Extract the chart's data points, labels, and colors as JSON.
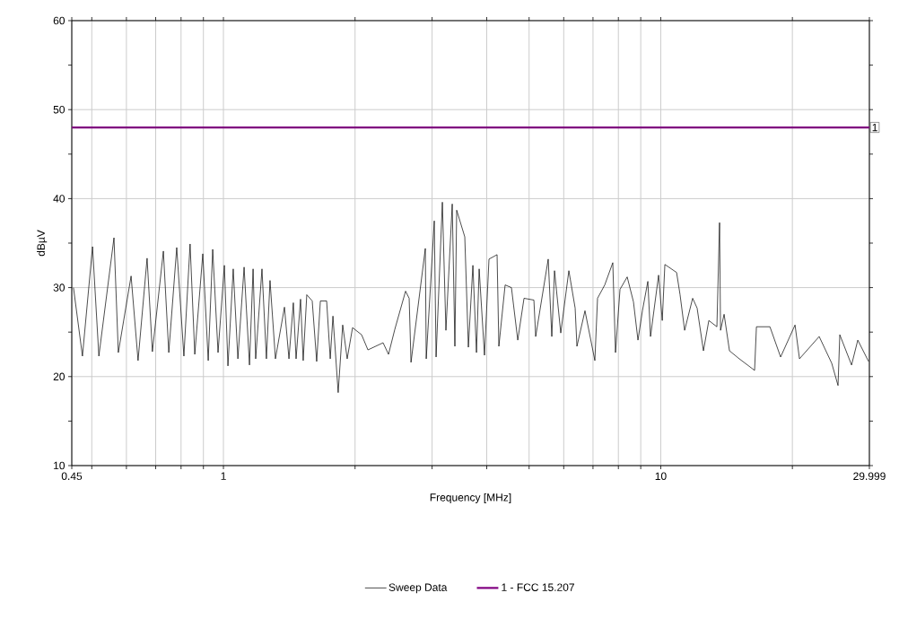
{
  "chart_data": {
    "type": "line",
    "xlabel": "Frequency [MHz]",
    "ylabel": "dBµV",
    "log": "x",
    "grid": true,
    "legend": "bottom",
    "marker": "none",
    "line_style": "solid",
    "xlim": [
      0.45,
      29.999
    ],
    "ylim": [
      10,
      60
    ],
    "xticks": [
      0.45,
      {
        "value": 0.5,
        "label": null
      },
      {
        "value": 0.6,
        "label": null
      },
      {
        "value": 0.7,
        "label": null
      },
      {
        "value": 0.8,
        "label": null
      },
      {
        "value": 0.9,
        "label": null
      },
      1,
      {
        "value": 2,
        "label": null
      },
      {
        "value": 3,
        "label": null
      },
      {
        "value": 4,
        "label": null
      },
      {
        "value": 5,
        "label": null
      },
      {
        "value": 6,
        "label": null
      },
      {
        "value": 7,
        "label": null
      },
      {
        "value": 8,
        "label": null
      },
      {
        "value": 9,
        "label": null
      },
      10,
      {
        "value": 20,
        "label": null
      },
      29.999
    ],
    "yticks": [
      10,
      {
        "value": 15,
        "label": null
      },
      20,
      {
        "value": 25,
        "label": null
      },
      30,
      {
        "value": 35,
        "label": null
      },
      40,
      {
        "value": 45,
        "label": null
      },
      50,
      {
        "value": 55,
        "label": null
      },
      60
    ],
    "annotations": [
      {
        "text": "1",
        "x": 29.999,
        "y": 48
      }
    ],
    "series": [
      {
        "name": "Sweep Data",
        "color": "#000000",
        "x": [
          0.454,
          0.476,
          0.502,
          0.519,
          0.562,
          0.575,
          0.615,
          0.638,
          0.669,
          0.688,
          0.729,
          0.75,
          0.782,
          0.812,
          0.839,
          0.86,
          0.897,
          0.923,
          0.945,
          0.972,
          1.005,
          1.024,
          1.053,
          1.079,
          1.115,
          1.147,
          1.169,
          1.185,
          1.225,
          1.254,
          1.278,
          1.315,
          1.379,
          1.412,
          1.445,
          1.466,
          1.501,
          1.522,
          1.551,
          1.596,
          1.634,
          1.666,
          1.722,
          1.755,
          1.78,
          1.83,
          1.874,
          1.919,
          1.974,
          2.07,
          2.14,
          2.318,
          2.385,
          2.465,
          2.609,
          2.659,
          2.685,
          2.895,
          2.909,
          3.035,
          3.064,
          3.167,
          3.227,
          3.336,
          3.383,
          3.415,
          3.564,
          3.632,
          3.719,
          3.79,
          3.844,
          3.954,
          4.048,
          4.224,
          4.264,
          4.407,
          4.556,
          4.71,
          4.868,
          5.128,
          5.176,
          5.529,
          5.635,
          5.716,
          5.907,
          6.164,
          6.372,
          6.432,
          6.711,
          7.069,
          7.17,
          7.447,
          7.77,
          7.881,
          8.069,
          8.38,
          8.662,
          8.869,
          9.081,
          9.343,
          9.476,
          9.887,
          10.08,
          10.22,
          10.87,
          11.07,
          11.34,
          11.83,
          12.11,
          12.52,
          12.88,
          13.44,
          13.63,
          13.7,
          13.96,
          14.36,
          15.12,
          16.39,
          16.55,
          17.77,
          18.8,
          20.28,
          20.76,
          23.03,
          24.6,
          25.43,
          25.67,
          27.31,
          28.22,
          29.87
        ],
        "values": [
          30,
          22.3,
          34.6,
          22.3,
          35.6,
          22.7,
          31.3,
          21.8,
          33.3,
          22.8,
          34.1,
          22.7,
          34.5,
          22.3,
          34.9,
          22.5,
          33.8,
          21.8,
          34.3,
          22.7,
          32.5,
          21.2,
          32.1,
          22,
          32.3,
          21.3,
          32.1,
          22,
          32.1,
          22,
          30.8,
          22,
          27.8,
          22,
          28.3,
          22,
          28.7,
          21.8,
          29.2,
          28.5,
          21.7,
          28.5,
          28.5,
          22,
          26.8,
          18.2,
          25.8,
          22,
          25.5,
          24.7,
          23,
          23.8,
          22.5,
          25.3,
          29.6,
          28.8,
          21.6,
          34.4,
          22,
          37.5,
          22.2,
          39.6,
          25.2,
          39.4,
          23.4,
          38.7,
          35.7,
          23.3,
          32.5,
          22.7,
          32.1,
          22.4,
          33.2,
          33.7,
          23.4,
          30.3,
          30,
          24.1,
          28.8,
          28.6,
          24.5,
          33.2,
          24.5,
          31.9,
          24.9,
          31.9,
          27.7,
          23.4,
          27.4,
          21.8,
          28.8,
          30.3,
          32.8,
          22.7,
          29.8,
          31.2,
          28.4,
          24.1,
          27.4,
          30.7,
          24.5,
          31.4,
          26.3,
          32.6,
          31.7,
          29.2,
          25.2,
          28.8,
          27.7,
          22.9,
          26.3,
          25.6,
          37.3,
          25.2,
          27,
          22.9,
          22,
          20.7,
          25.6,
          25.6,
          22.2,
          25.8,
          22,
          24.5,
          21.5,
          19,
          24.7,
          21.3,
          24.1,
          21.7
        ]
      },
      {
        "name": "1 - FCC 15.207",
        "color": "#800080",
        "x": [
          0.45,
          29.999
        ],
        "values": [
          48,
          48
        ]
      }
    ]
  }
}
